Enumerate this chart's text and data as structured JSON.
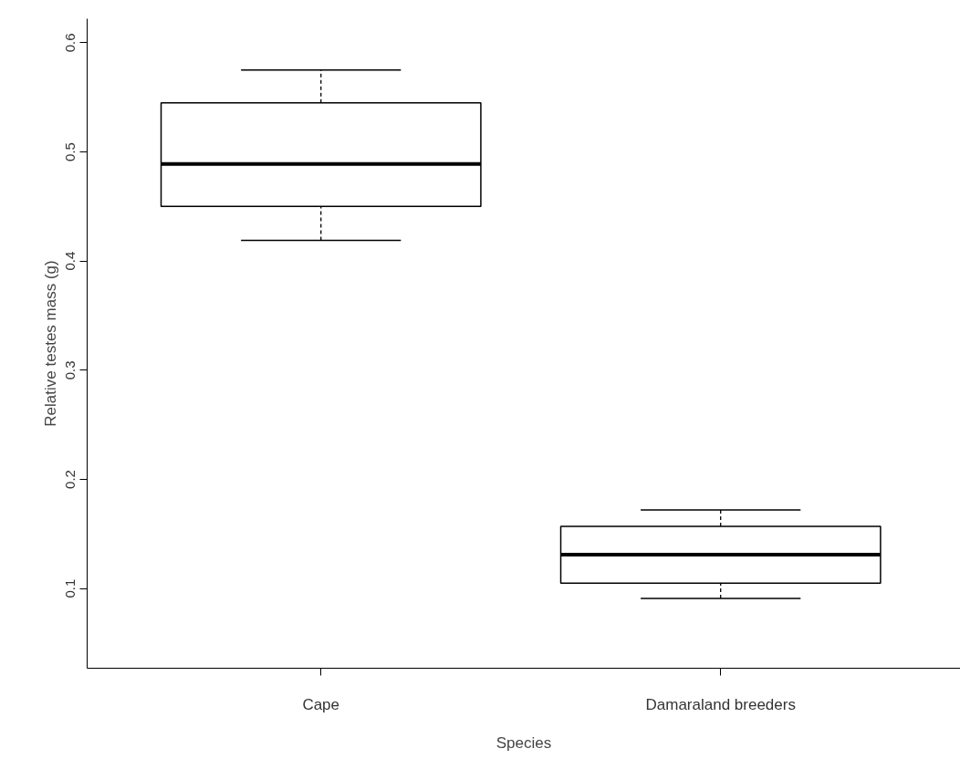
{
  "chart_data": {
    "type": "box",
    "xlabel": "Species",
    "ylabel": "Relative testes mass (g)",
    "categories": [
      "Cape",
      "Damaraland breeders"
    ],
    "boxes": [
      {
        "low": 0.419,
        "q1": 0.45,
        "median": 0.489,
        "q3": 0.545,
        "high": 0.575
      },
      {
        "low": 0.091,
        "q1": 0.105,
        "median": 0.131,
        "q3": 0.157,
        "high": 0.172
      }
    ],
    "ylim": [
      0.027,
      0.622
    ],
    "yticks": [
      0.1,
      0.2,
      0.3,
      0.4,
      0.5,
      0.6
    ],
    "grid": false,
    "color": "#ffffff"
  }
}
